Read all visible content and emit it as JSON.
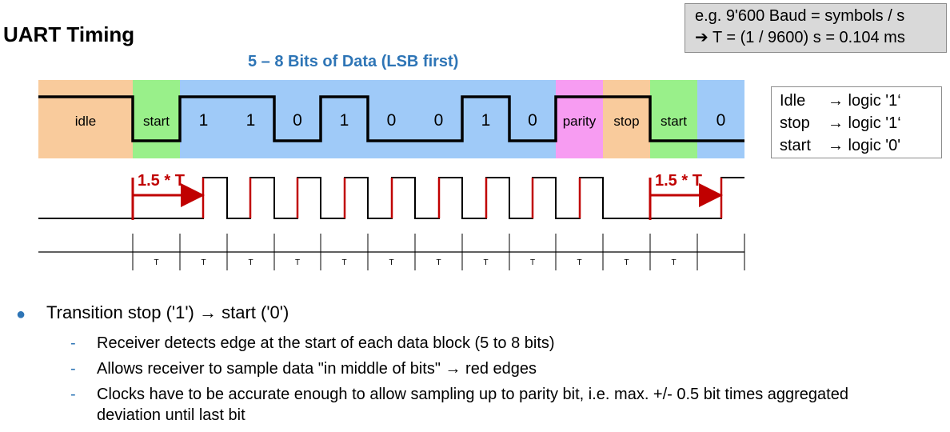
{
  "title": "UART Timing",
  "info": {
    "line1": "e.g. 9'600 Baud = symbols / s",
    "line2": "➔ T = (1 / 9600) s = 0.104 ms"
  },
  "subtitle": "5 – 8 Bits of Data (LSB first)",
  "segments": [
    {
      "label": "idle",
      "color": "#f9cb9c",
      "level": 1
    },
    {
      "label": "start",
      "color": "#99f08a",
      "level": 0
    },
    {
      "label": "1",
      "color": "#9fcaf8",
      "level": 1
    },
    {
      "label": "1",
      "color": "#9fcaf8",
      "level": 1
    },
    {
      "label": "0",
      "color": "#9fcaf8",
      "level": 0
    },
    {
      "label": "1",
      "color": "#9fcaf8",
      "level": 1
    },
    {
      "label": "0",
      "color": "#9fcaf8",
      "level": 0
    },
    {
      "label": "0",
      "color": "#9fcaf8",
      "level": 0
    },
    {
      "label": "1",
      "color": "#9fcaf8",
      "level": 1
    },
    {
      "label": "0",
      "color": "#9fcaf8",
      "level": 0
    },
    {
      "label": "parity",
      "color": "#f79cf2",
      "level": 1
    },
    {
      "label": "stop",
      "color": "#f9cb9c",
      "level": 1
    },
    {
      "label": "start",
      "color": "#99f08a",
      "level": 0
    },
    {
      "label": "0",
      "color": "#9fcaf8",
      "level": 0
    }
  ],
  "sample_label": "1.5 * T",
  "period_label": "T",
  "period_count": 12,
  "legend": [
    {
      "term": "Idle",
      "value": "→ logic '1‘"
    },
    {
      "term": "stop",
      "value": "→ logic '1‘"
    },
    {
      "term": "start",
      "value": "→ logic '0'"
    }
  ],
  "bullets": {
    "main": "Transition stop ('1') → start ('0')",
    "subs": [
      "Receiver detects edge at the start of each data block (5 to 8 bits)",
      "Allows receiver to sample data \"in middle of bits\" → red edges",
      "Clocks have to be accurate enough to allow sampling up to parity bit, i.e. max. +/- 0.5 bit times aggregated deviation until last bit"
    ]
  },
  "colors": {
    "accent_red": "#c00000",
    "accent_blue": "#2e75b6"
  }
}
